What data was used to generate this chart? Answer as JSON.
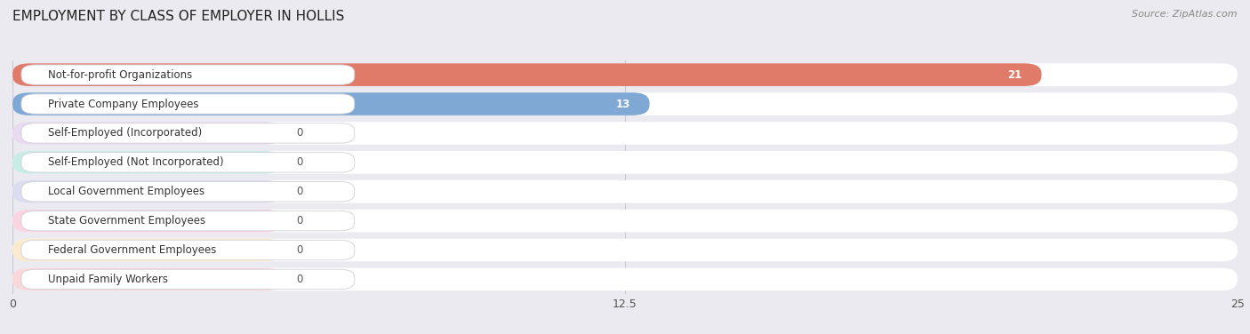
{
  "title": "EMPLOYMENT BY CLASS OF EMPLOYER IN HOLLIS",
  "source": "Source: ZipAtlas.com",
  "categories": [
    "Not-for-profit Organizations",
    "Private Company Employees",
    "Self-Employed (Incorporated)",
    "Self-Employed (Not Incorporated)",
    "Local Government Employees",
    "State Government Employees",
    "Federal Government Employees",
    "Unpaid Family Workers"
  ],
  "values": [
    21,
    13,
    0,
    0,
    0,
    0,
    0,
    0
  ],
  "bar_colors": [
    "#e07b6a",
    "#7fa8d4",
    "#c4a8d8",
    "#72c4bc",
    "#a8a8d8",
    "#f090aa",
    "#f5c98a",
    "#f0a8a8"
  ],
  "bar_bg_colors": [
    "#f5d5cf",
    "#d5e5f5",
    "#e8daf0",
    "#c8ede8",
    "#dcdcf0",
    "#fad5e0",
    "#faeace",
    "#f8d8d8"
  ],
  "xlim": [
    0,
    25
  ],
  "xticks": [
    0,
    12.5,
    25
  ],
  "background_color": "#eaeaf0",
  "row_bg": "#f5f5fa",
  "title_fontsize": 11,
  "label_fontsize": 8.5,
  "value_fontsize": 8.5,
  "zero_bar_width": 5.5
}
